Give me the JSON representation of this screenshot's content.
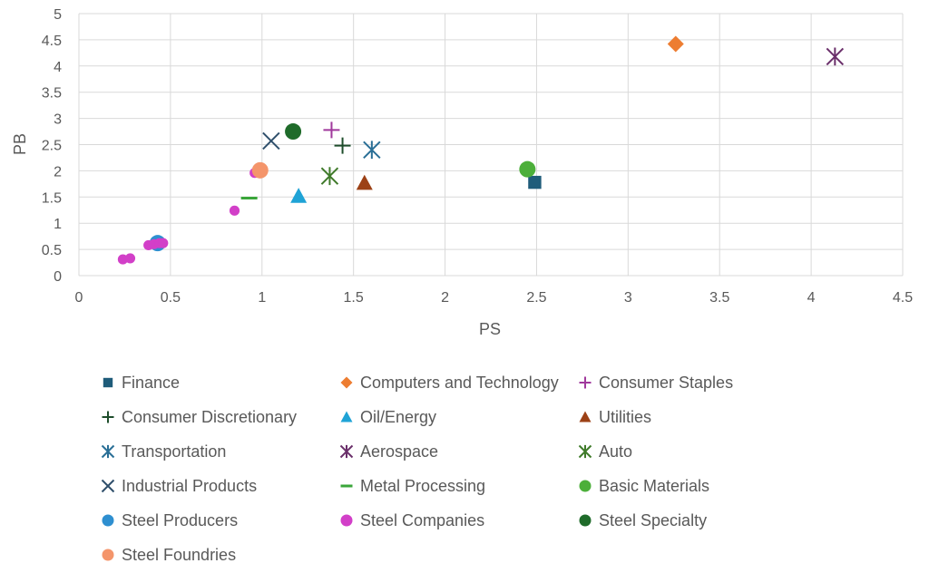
{
  "chart_data": {
    "type": "scatter",
    "title": "",
    "xlabel": "PS",
    "ylabel": "PB",
    "xlim": [
      0,
      4.5
    ],
    "ylim": [
      0,
      5
    ],
    "x_ticks": [
      "0",
      "0.5",
      "1",
      "1.5",
      "2",
      "2.5",
      "3",
      "3.5",
      "4",
      "4.5"
    ],
    "y_ticks": [
      "0",
      "0.5",
      "1",
      "1.5",
      "2",
      "2.5",
      "3",
      "3.5",
      "4",
      "4.5",
      "5"
    ],
    "grid": true,
    "legend_position": "bottom",
    "series": [
      {
        "name": "Finance",
        "marker": "square",
        "color": "#1f5c7a",
        "points": [
          [
            2.49,
            1.78
          ]
        ]
      },
      {
        "name": "Computers and Technology",
        "marker": "diamond",
        "color": "#ed7d31",
        "points": [
          [
            3.26,
            4.42
          ]
        ]
      },
      {
        "name": "Consumer Staples",
        "marker": "plus",
        "color": "#a0399c",
        "points": [
          [
            1.38,
            2.78
          ]
        ]
      },
      {
        "name": "Consumer Discretionary",
        "marker": "plus",
        "color": "#1e4d2b",
        "points": [
          [
            1.44,
            2.48
          ]
        ]
      },
      {
        "name": "Oil/Energy",
        "marker": "triangle",
        "color": "#1fa3d6",
        "points": [
          [
            1.2,
            1.52
          ]
        ]
      },
      {
        "name": "Utilities",
        "marker": "triangle",
        "color": "#9c4116",
        "points": [
          [
            1.56,
            1.77
          ]
        ]
      },
      {
        "name": "Transportation",
        "marker": "star",
        "color": "#2a6f96",
        "points": [
          [
            1.6,
            2.4
          ]
        ]
      },
      {
        "name": "Aerospace",
        "marker": "star",
        "color": "#6a2f6a",
        "points": [
          [
            4.13,
            4.18
          ]
        ]
      },
      {
        "name": "Auto",
        "marker": "star",
        "color": "#3f7a2a",
        "points": [
          [
            1.37,
            1.9
          ]
        ]
      },
      {
        "name": "Industrial Products",
        "marker": "x",
        "color": "#2f4f6b",
        "points": [
          [
            1.05,
            2.57
          ]
        ]
      },
      {
        "name": "Metal Processing",
        "marker": "dash",
        "color": "#3aa63a",
        "points": [
          [
            0.93,
            1.48
          ]
        ]
      },
      {
        "name": "Basic Materials",
        "marker": "circle",
        "color": "#4caf3a",
        "points": [
          [
            2.45,
            2.03
          ]
        ]
      },
      {
        "name": "Steel Producers",
        "marker": "circle",
        "color": "#2e8fd0",
        "points": [
          [
            0.43,
            0.62
          ]
        ]
      },
      {
        "name": "Steel Companies",
        "marker": "smallcircle",
        "color": "#d23fc8",
        "points": [
          [
            0.24,
            0.31
          ],
          [
            0.28,
            0.33
          ],
          [
            0.38,
            0.58
          ],
          [
            0.41,
            0.6
          ],
          [
            0.44,
            0.62
          ],
          [
            0.46,
            0.62
          ],
          [
            0.85,
            1.24
          ],
          [
            0.96,
            1.96
          ]
        ]
      },
      {
        "name": "Steel Specialty",
        "marker": "circle",
        "color": "#1f6b2a",
        "points": [
          [
            1.17,
            2.75
          ]
        ]
      },
      {
        "name": "Steel Foundries",
        "marker": "circle",
        "color": "#f4956b",
        "points": [
          [
            0.99,
            2.01
          ]
        ]
      }
    ]
  }
}
